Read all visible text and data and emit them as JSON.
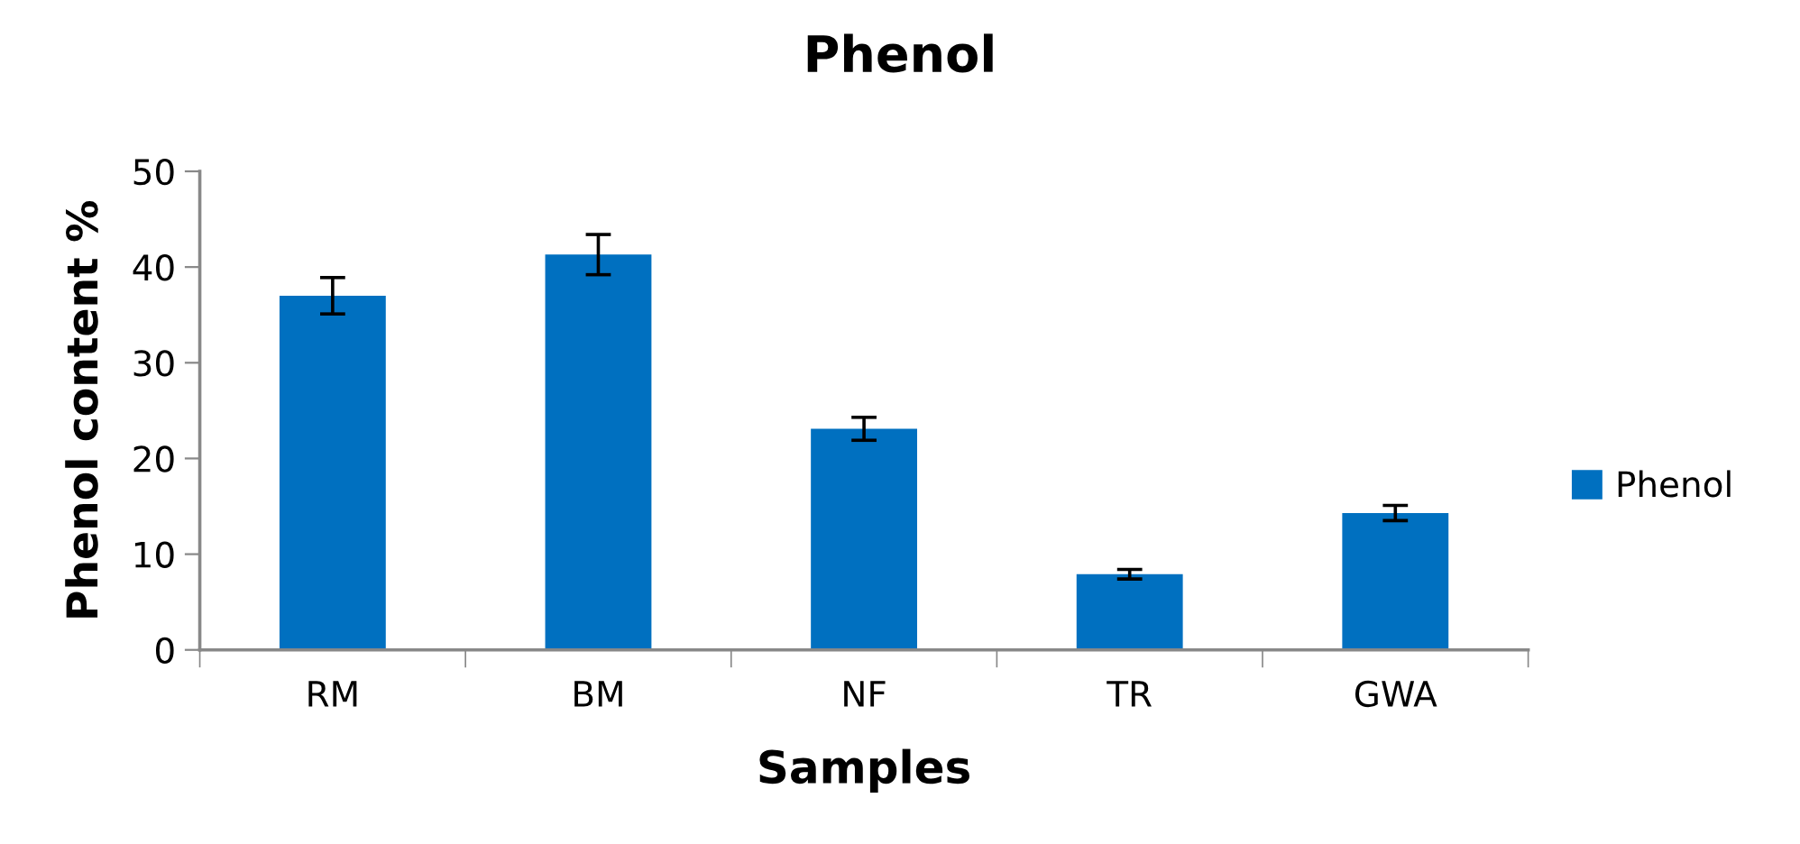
{
  "chart_data": {
    "type": "bar",
    "title": "Phenol",
    "xlabel": "Samples",
    "ylabel": "Phenol content %",
    "categories": [
      "RM",
      "BM",
      "NF",
      "TR",
      "GWA"
    ],
    "series": [
      {
        "name": "Phenol",
        "color": "#0070c0",
        "values": [
          37.0,
          41.3,
          23.1,
          7.9,
          14.3
        ],
        "errors": [
          1.9,
          2.1,
          1.2,
          0.5,
          0.8
        ]
      }
    ],
    "ylim": [
      0,
      50
    ],
    "yticks": [
      0,
      10,
      20,
      30,
      40,
      50
    ],
    "grid": false,
    "legend": "right"
  }
}
